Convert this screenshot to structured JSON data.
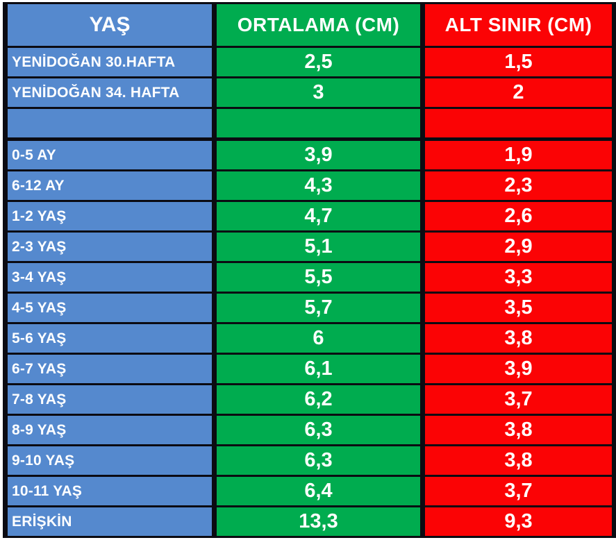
{
  "colors": {
    "age_column_bg": "#5589CE",
    "average_column_bg": "#00AC4F",
    "lower_limit_column_bg": "#FB0305",
    "border": "#0b0b12",
    "text": "#FFFFFF"
  },
  "chart_data": {
    "type": "table",
    "title": "",
    "columns": [
      "YAŞ",
      "ORTALAMA (CM)",
      "ALT SINIR (CM)"
    ],
    "rows": [
      {
        "age": "YENİDOĞAN 30.HAFTA",
        "average_cm": "2,5",
        "lower_limit_cm": "1,5"
      },
      {
        "age": "YENİDOĞAN 34. HAFTA",
        "average_cm": "3",
        "lower_limit_cm": "2"
      },
      {
        "age": "",
        "average_cm": "",
        "lower_limit_cm": ""
      },
      {
        "age": "0-5 AY",
        "average_cm": "3,9",
        "lower_limit_cm": "1,9"
      },
      {
        "age": "6-12 AY",
        "average_cm": "4,3",
        "lower_limit_cm": "2,3"
      },
      {
        "age": "1-2 YAŞ",
        "average_cm": "4,7",
        "lower_limit_cm": "2,6"
      },
      {
        "age": "2-3 YAŞ",
        "average_cm": "5,1",
        "lower_limit_cm": "2,9"
      },
      {
        "age": "3-4 YAŞ",
        "average_cm": "5,5",
        "lower_limit_cm": "3,3"
      },
      {
        "age": "4-5 YAŞ",
        "average_cm": "5,7",
        "lower_limit_cm": "3,5"
      },
      {
        "age": "5-6 YAŞ",
        "average_cm": "6",
        "lower_limit_cm": "3,8"
      },
      {
        "age": "6-7 YAŞ",
        "average_cm": "6,1",
        "lower_limit_cm": "3,9"
      },
      {
        "age": "7-8 YAŞ",
        "average_cm": "6,2",
        "lower_limit_cm": "3,7"
      },
      {
        "age": "8-9 YAŞ",
        "average_cm": "6,3",
        "lower_limit_cm": "3,8"
      },
      {
        "age": "9-10 YAŞ",
        "average_cm": "6,3",
        "lower_limit_cm": "3,8"
      },
      {
        "age": "10-11 YAŞ",
        "average_cm": "6,4",
        "lower_limit_cm": "3,7"
      },
      {
        "age": "ERİŞKİN",
        "average_cm": "13,3",
        "lower_limit_cm": "9,3"
      }
    ]
  }
}
